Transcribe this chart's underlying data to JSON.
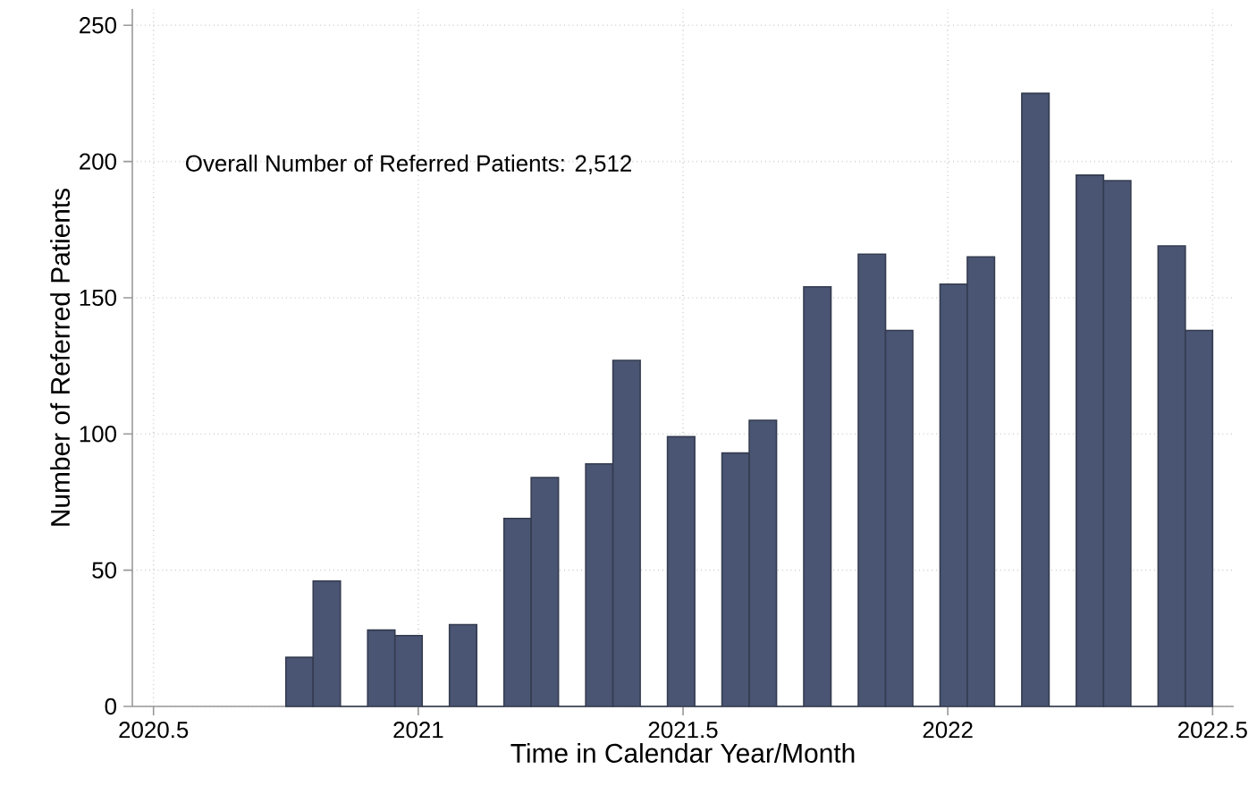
{
  "chart_data": {
    "type": "histogram",
    "xlabel": "Time in Calendar Year/Month",
    "ylabel": "Number of Referred Patients",
    "annotations": [
      "Overall Number of Referred Patients: 2,512"
    ],
    "bins": [
      2020.75,
      2020.8015,
      2020.8529,
      2020.9044,
      2020.9559,
      2021.0074,
      2021.0588,
      2021.1103,
      2021.1618,
      2021.2132,
      2021.2647,
      2021.3162,
      2021.3676,
      2021.4191,
      2021.4706,
      2021.5221,
      2021.5735,
      2021.625,
      2021.6765,
      2021.7279,
      2021.7794,
      2021.8309,
      2021.8824,
      2021.9338,
      2021.9853,
      2022.0368,
      2022.0882,
      2022.1397,
      2022.1912,
      2022.2426,
      2022.2941,
      2022.3456,
      2022.3971,
      2022.4485,
      2022.5
    ],
    "values": [
      18,
      46,
      0,
      28,
      26,
      0,
      30,
      0,
      69,
      84,
      0,
      89,
      127,
      0,
      99,
      0,
      93,
      105,
      0,
      154,
      0,
      166,
      138,
      0,
      155,
      165,
      0,
      225,
      0,
      195,
      193,
      0,
      169,
      138
    ],
    "color": "#4a5573",
    "xlim": [
      2020.46,
      2022.54
    ],
    "ylim": [
      0,
      256
    ],
    "xticks": [
      2020.5,
      2021,
      2021.5,
      2022,
      2022.5
    ],
    "yticks": [
      0,
      50,
      100,
      150,
      200,
      250
    ],
    "grid": true
  }
}
